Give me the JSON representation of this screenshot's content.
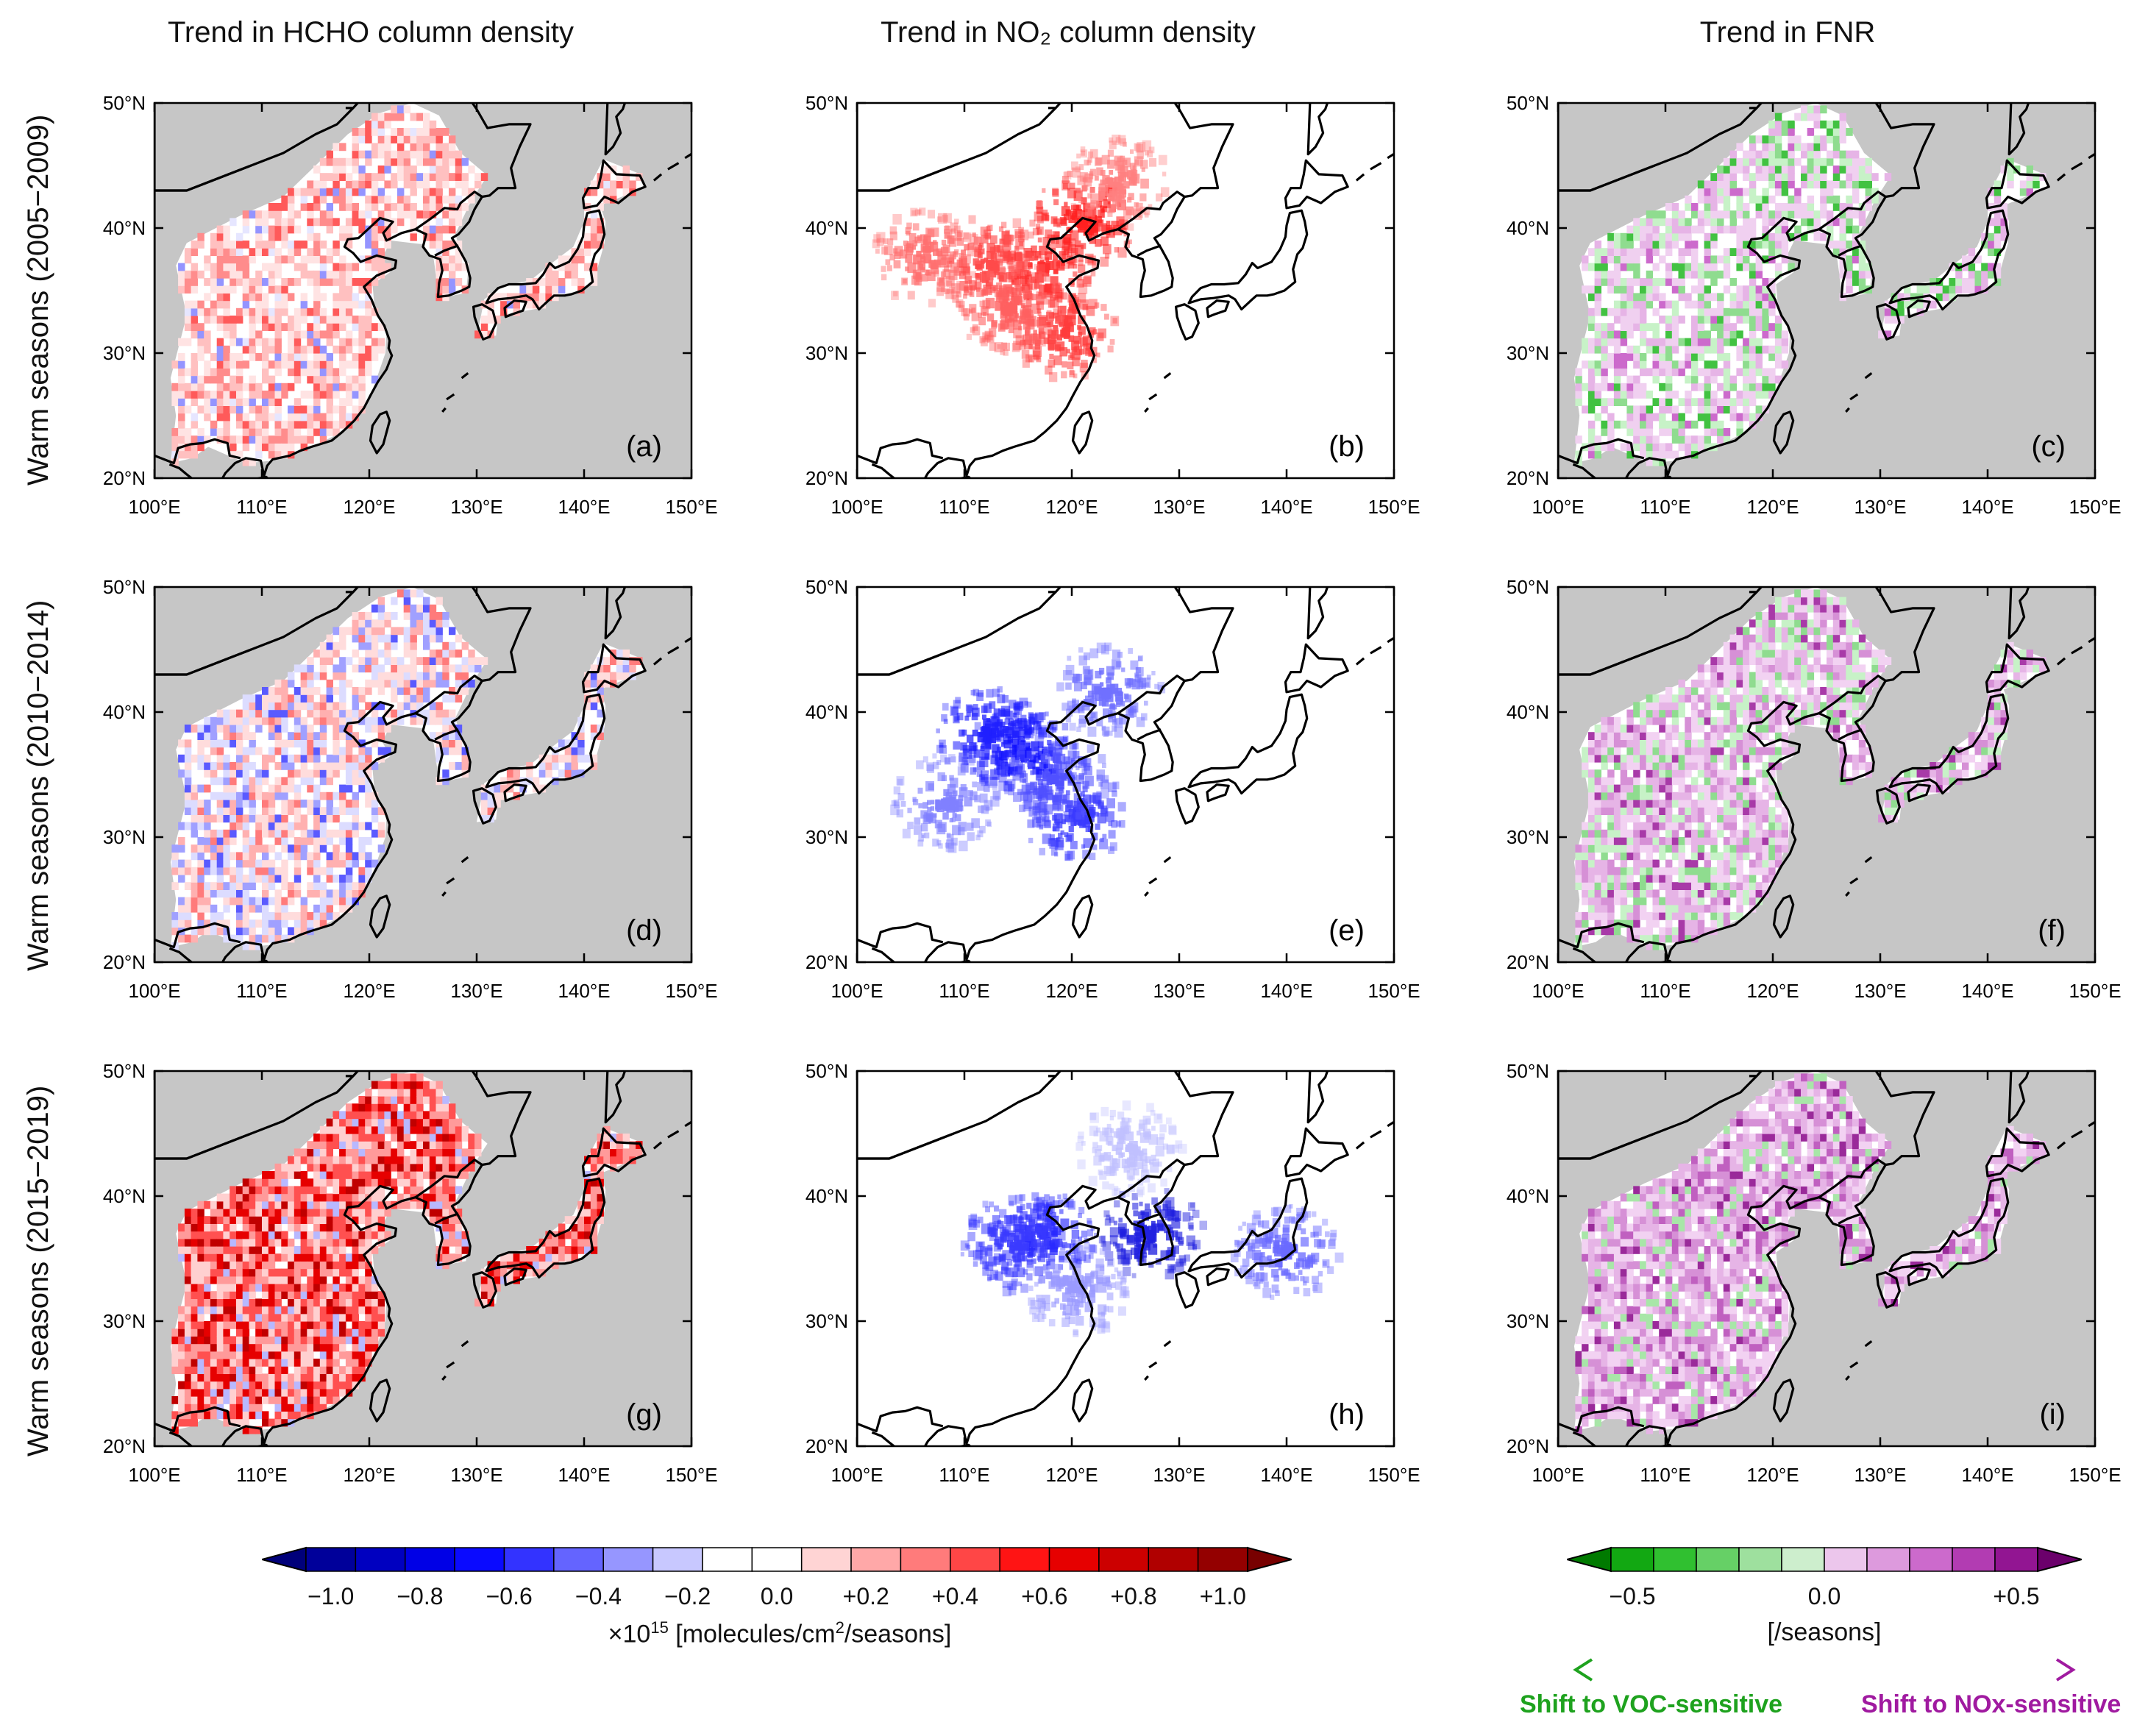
{
  "column_titles": [
    "Trend in HCHO column density",
    "Trend in NO₂ column density",
    "Trend in FNR"
  ],
  "row_titles": [
    "Warm seasons (2005−2009)",
    "Warm seasons (2010−2014)",
    "Warm seasons (2015−2019)"
  ],
  "axes": {
    "lon_ticks": [
      "100°E",
      "110°E",
      "120°E",
      "130°E",
      "140°E",
      "150°E"
    ],
    "lat_ticks": [
      "20°N",
      "30°N",
      "40°N",
      "50°N"
    ],
    "lon_range": [
      100,
      150
    ],
    "lat_range": [
      20,
      50
    ]
  },
  "panels": [
    {
      "label": "(a)",
      "variable": "HCHO",
      "period": "2005-2009",
      "pattern": "red"
    },
    {
      "label": "(b)",
      "variable": "NO2",
      "period": "2005-2009",
      "pattern": "red"
    },
    {
      "label": "(c)",
      "variable": "FNR",
      "period": "2005-2009",
      "pattern": "green-purple"
    },
    {
      "label": "(d)",
      "variable": "HCHO",
      "period": "2010-2014",
      "pattern": "mixed"
    },
    {
      "label": "(e)",
      "variable": "NO2",
      "period": "2010-2014",
      "pattern": "blue"
    },
    {
      "label": "(f)",
      "variable": "FNR",
      "period": "2010-2014",
      "pattern": "purple-green"
    },
    {
      "label": "(g)",
      "variable": "HCHO",
      "period": "2015-2019",
      "pattern": "strong-red"
    },
    {
      "label": "(h)",
      "variable": "NO2",
      "period": "2015-2019",
      "pattern": "blue-light"
    },
    {
      "label": "(i)",
      "variable": "FNR",
      "period": "2015-2019",
      "pattern": "purple"
    }
  ],
  "colorbar_left": {
    "tick_labels": [
      "−1.0",
      "−0.8",
      "−0.6",
      "−0.4",
      "−0.2",
      "0.0",
      "+0.2",
      "+0.4",
      "+0.6",
      "+0.8",
      "+1.0"
    ],
    "unit_prefix": "×10",
    "unit_exp": "15",
    "unit_rest": " [molecules/cm",
    "unit_sq": "2",
    "unit_tail": "/seasons]",
    "colors": [
      "#00007a",
      "#00009a",
      "#0000c0",
      "#0000e6",
      "#0a0aff",
      "#3333ff",
      "#6464ff",
      "#9696ff",
      "#c8c8ff",
      "#ffffff",
      "#ffffff",
      "#ffd4d4",
      "#ffa8a8",
      "#ff7b7b",
      "#ff4646",
      "#ff1414",
      "#e60000",
      "#cc0000",
      "#b00000",
      "#940000",
      "#780000"
    ]
  },
  "colorbar_right": {
    "tick_labels": [
      "−0.5",
      "0.0",
      "+0.5"
    ],
    "unit": "[/seasons]",
    "colors": [
      "#007a00",
      "#12a812",
      "#30c030",
      "#66d066",
      "#9ee09e",
      "#cdeecd",
      "#ecc6ec",
      "#dd9add",
      "#cc6acc",
      "#b23cb2",
      "#921592",
      "#6b006b"
    ]
  },
  "shift_labels": {
    "voc": "Shift to VOC-sensitive",
    "nox": "Shift to NOx-sensitive",
    "voc_color": "#1ea21e",
    "nox_color": "#a01aa0"
  },
  "colors": {
    "ocean": "#c6c6c6",
    "land": "#ffffff",
    "coast": "#000000"
  }
}
